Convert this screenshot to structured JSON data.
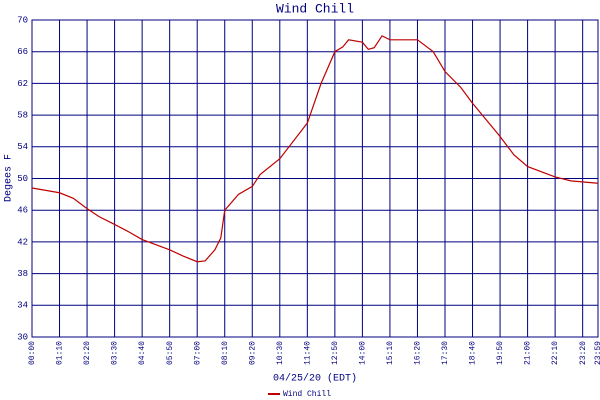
{
  "chart_data": {
    "type": "line",
    "title": "Wind Chill",
    "x_label": "04/25/20 (EDT)",
    "y_label": "Degees F",
    "xlim": [
      0,
      1439
    ],
    "ylim": [
      30,
      70
    ],
    "yticks": [
      30,
      34,
      38,
      42,
      46,
      50,
      54,
      58,
      62,
      66,
      70
    ],
    "xticks": [
      {
        "value": 0,
        "label": "00:00"
      },
      {
        "value": 70,
        "label": "01:10"
      },
      {
        "value": 140,
        "label": "02:20"
      },
      {
        "value": 210,
        "label": "03:30"
      },
      {
        "value": 280,
        "label": "04:40"
      },
      {
        "value": 350,
        "label": "05:50"
      },
      {
        "value": 420,
        "label": "07:00"
      },
      {
        "value": 490,
        "label": "08:10"
      },
      {
        "value": 560,
        "label": "09:20"
      },
      {
        "value": 630,
        "label": "10:30"
      },
      {
        "value": 700,
        "label": "11:40"
      },
      {
        "value": 770,
        "label": "12:50"
      },
      {
        "value": 840,
        "label": "14:00"
      },
      {
        "value": 910,
        "label": "15:10"
      },
      {
        "value": 980,
        "label": "16:20"
      },
      {
        "value": 1050,
        "label": "17:30"
      },
      {
        "value": 1120,
        "label": "18:40"
      },
      {
        "value": 1190,
        "label": "19:50"
      },
      {
        "value": 1260,
        "label": "21:00"
      },
      {
        "value": 1330,
        "label": "22:10"
      },
      {
        "value": 1400,
        "label": "23:20"
      },
      {
        "value": 1439,
        "label": "23:59"
      }
    ],
    "grid": true,
    "x": [
      0,
      70,
      105,
      140,
      170,
      210,
      245,
      280,
      350,
      385,
      420,
      440,
      465,
      480,
      490,
      525,
      560,
      580,
      630,
      700,
      735,
      770,
      790,
      805,
      840,
      855,
      870,
      890,
      910,
      980,
      1020,
      1050,
      1090,
      1120,
      1190,
      1225,
      1260,
      1330,
      1370,
      1439
    ],
    "series": [
      {
        "name": "Wind Chill",
        "color": "#c00000",
        "values": [
          48.8,
          48.2,
          47.5,
          46.2,
          45.2,
          44.2,
          43.3,
          42.3,
          41.0,
          40.2,
          39.5,
          39.6,
          41.0,
          42.5,
          46.0,
          48.0,
          49.0,
          50.5,
          52.5,
          57.0,
          62.0,
          66.0,
          66.6,
          67.5,
          67.2,
          66.3,
          66.5,
          68.0,
          67.5,
          67.5,
          66.0,
          63.5,
          61.5,
          59.5,
          55.3,
          53.0,
          51.5,
          50.2,
          49.7,
          49.4
        ]
      }
    ]
  }
}
